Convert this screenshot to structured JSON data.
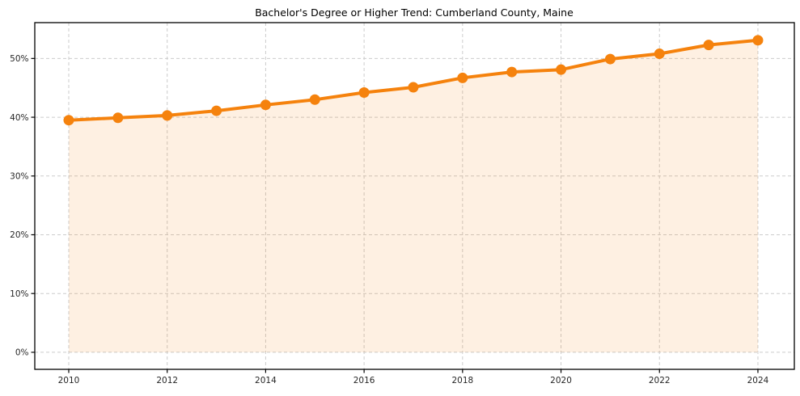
{
  "chart_data": {
    "type": "area",
    "title": "Bachelor's Degree or Higher Trend: Cumberland County, Maine",
    "x": [
      2010,
      2011,
      2012,
      2013,
      2014,
      2015,
      2016,
      2017,
      2018,
      2019,
      2020,
      2021,
      2022,
      2023,
      2024
    ],
    "values": [
      39.5,
      39.9,
      40.3,
      41.1,
      42.1,
      43.0,
      44.2,
      45.1,
      46.7,
      47.7,
      48.1,
      49.9,
      50.8,
      52.3,
      53.1
    ],
    "xlabel": "",
    "ylabel": "",
    "xtick_values": [
      2010,
      2012,
      2014,
      2016,
      2018,
      2020,
      2022,
      2024
    ],
    "ytick_values": [
      0,
      10,
      20,
      30,
      40,
      50
    ],
    "ytick_labels": [
      "0%",
      "10%",
      "20%",
      "30%",
      "40%",
      "50%"
    ],
    "xlim": [
      2009.31,
      2024.74
    ],
    "ylim": [
      -2.9,
      56.1
    ],
    "grid": "dashed",
    "legend": "none",
    "fill_baseline": 0,
    "marker": "circle",
    "colors": {
      "line": "#F5820D",
      "marker": "#F5820D",
      "area_fill": "rgba(245,130,13,0.12)",
      "grid": "#CCCCCC",
      "spine": "#000000",
      "tick": "#000000",
      "tick_label": "#262626",
      "title": "#000000",
      "background": "#FFFFFF"
    }
  }
}
